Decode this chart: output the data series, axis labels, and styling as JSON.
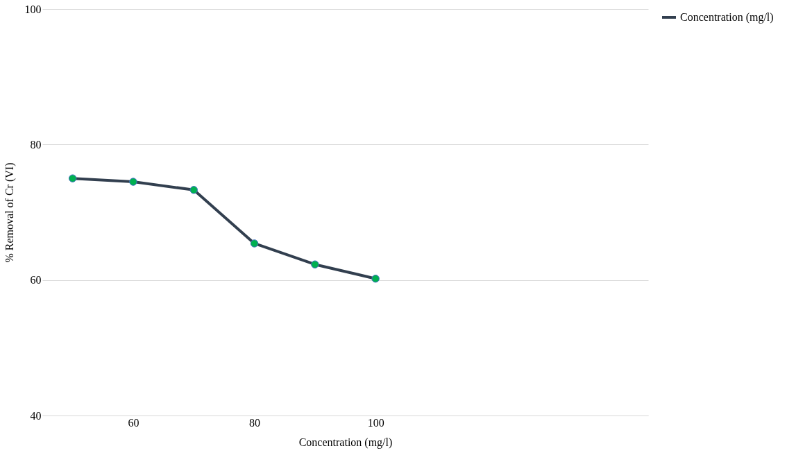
{
  "chart_data": {
    "type": "line",
    "xlabel": "Concentration (mg/l)",
    "ylabel": "% Removal of Cr (VI)",
    "categories": [
      null,
      "60",
      null,
      "80",
      null,
      "100",
      null,
      null,
      null,
      null
    ],
    "series": [
      {
        "name": "Concentration (mg/l)",
        "color": "#323f4f",
        "values": [
          75.0,
          74.5,
          73.3,
          65.4,
          62.3,
          60.2,
          null,
          null,
          null,
          null
        ]
      }
    ],
    "ylim": [
      40,
      100
    ],
    "yticks": [
      40,
      60,
      80,
      100
    ],
    "grid": "y",
    "legend": "right",
    "marker": "circle",
    "line_style": "solid"
  }
}
